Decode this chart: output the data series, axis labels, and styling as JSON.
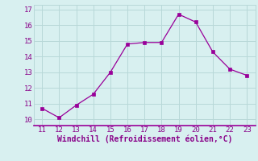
{
  "x": [
    11,
    12,
    13,
    14,
    15,
    16,
    17,
    18,
    19,
    20,
    21,
    22,
    23
  ],
  "y": [
    10.7,
    10.1,
    10.9,
    11.6,
    13.0,
    14.8,
    14.9,
    14.9,
    16.7,
    16.2,
    14.3,
    13.2,
    12.8
  ],
  "line_color": "#990099",
  "marker": "s",
  "marker_size": 2.5,
  "background_color": "#d8f0f0",
  "grid_color": "#b8d8d8",
  "xlabel": "Windchill (Refroidissement éolien,°C)",
  "xlabel_color": "#880088",
  "tick_color": "#880088",
  "xlim": [
    10.5,
    23.5
  ],
  "ylim": [
    9.6,
    17.3
  ],
  "xticks": [
    11,
    12,
    13,
    14,
    15,
    16,
    17,
    18,
    19,
    20,
    21,
    22,
    23
  ],
  "yticks": [
    10,
    11,
    12,
    13,
    14,
    15,
    16,
    17
  ]
}
